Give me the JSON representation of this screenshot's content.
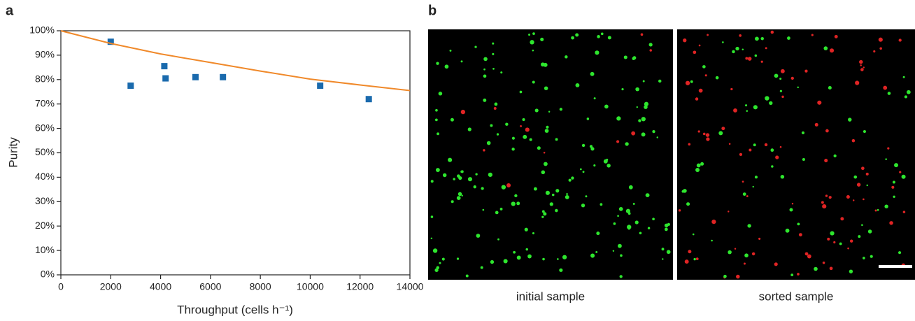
{
  "panel_a_label": "a",
  "chart_data": {
    "type": "scatter",
    "x_label": "Throughput (cells h⁻¹)",
    "y_label": "Purity",
    "xlim": [
      0,
      14000
    ],
    "xticks": [
      0,
      2000,
      4000,
      6000,
      8000,
      10000,
      12000,
      14000
    ],
    "ylim": [
      0,
      100
    ],
    "yticks": [
      {
        "value": 0,
        "label": "0%"
      },
      {
        "value": 10,
        "label": "10%"
      },
      {
        "value": 20,
        "label": "20%"
      },
      {
        "value": 30,
        "label": "30%"
      },
      {
        "value": 40,
        "label": "40%"
      },
      {
        "value": 50,
        "label": "50%"
      },
      {
        "value": 60,
        "label": "60%"
      },
      {
        "value": 70,
        "label": "70%"
      },
      {
        "value": 80,
        "label": "80%"
      },
      {
        "value": 90,
        "label": "90%"
      },
      {
        "value": 100,
        "label": "100%"
      }
    ],
    "series": [
      {
        "type": "scatter",
        "color": "#1a6aad",
        "x": [
          2000,
          2800,
          4150,
          4200,
          5400,
          6500,
          10400,
          12350
        ],
        "values": [
          95.5,
          77.5,
          85.5,
          80.5,
          81,
          81,
          77.5,
          72
        ]
      },
      {
        "type": "line",
        "color": "#f0892a",
        "x": [
          0,
          2000,
          4000,
          6000,
          8000,
          10000,
          12000,
          14000
        ],
        "values": [
          100,
          94.8,
          90.5,
          87,
          83.5,
          80.2,
          77.8,
          75.5
        ]
      }
    ]
  },
  "panel_b": {
    "label": "b",
    "images": [
      {
        "caption": "initial sample"
      },
      {
        "caption": "sorted sample"
      }
    ]
  }
}
